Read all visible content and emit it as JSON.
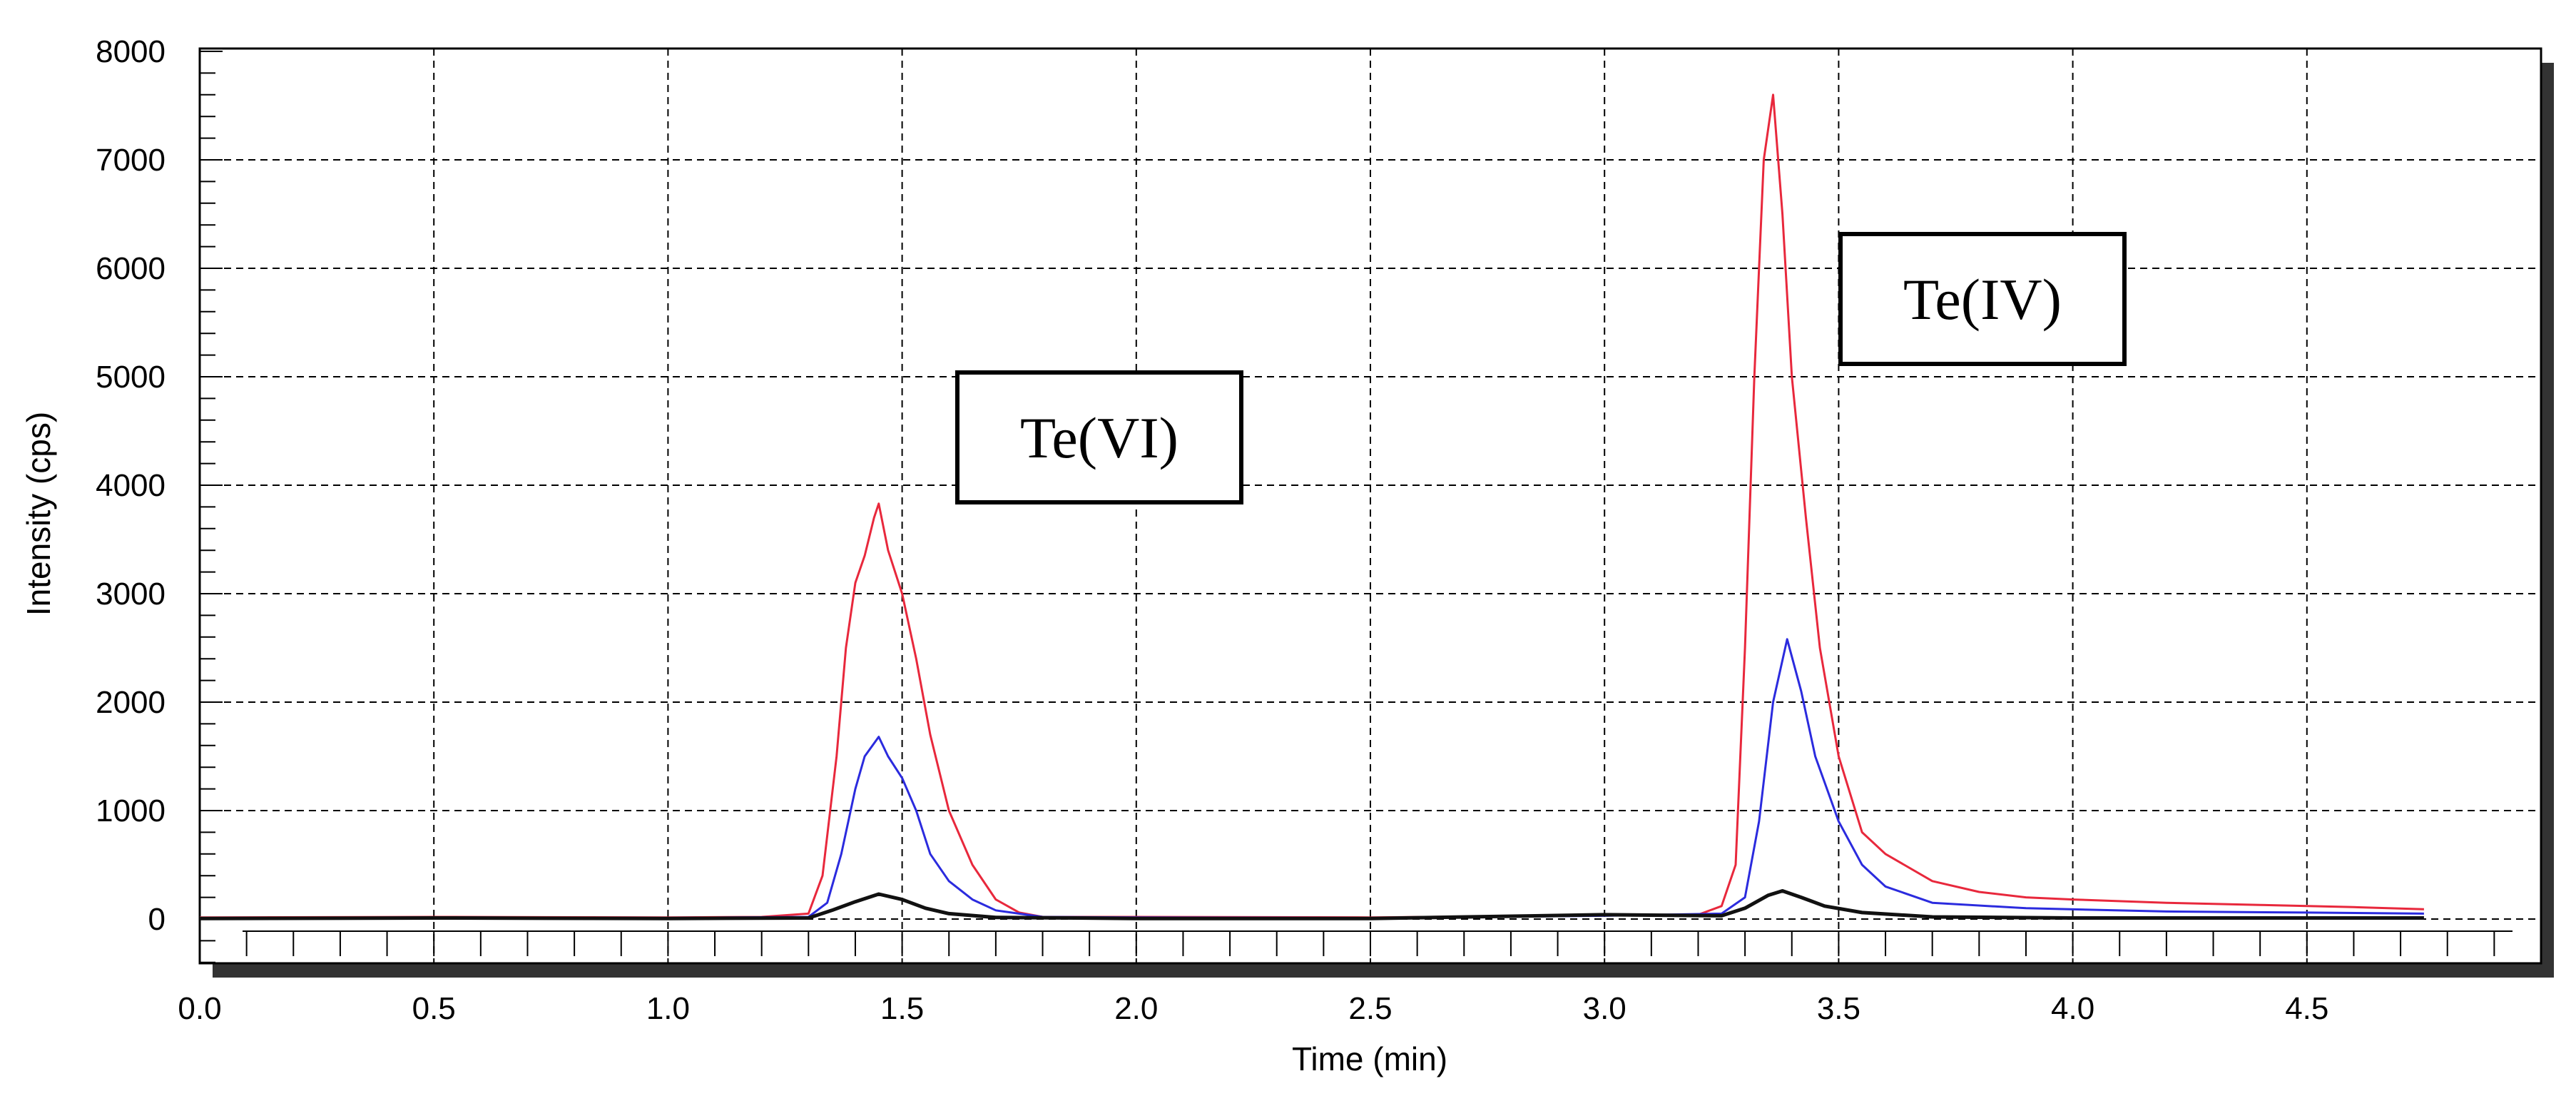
{
  "chart_data": {
    "type": "line",
    "title": "",
    "xlabel": "Time (min)",
    "ylabel": "Intensity (cps)",
    "xlim": [
      0,
      5.0
    ],
    "ylim": [
      -400,
      8000
    ],
    "grid": true,
    "x_ticks": [
      0.0,
      0.5,
      1.0,
      1.5,
      2.0,
      2.5,
      3.0,
      3.5,
      4.0,
      4.5
    ],
    "x_tick_labels": [
      "0.0",
      "0.5",
      "1.0",
      "1.5",
      "2.0",
      "2.5",
      "3.0",
      "3.5",
      "4.0",
      "4.5"
    ],
    "y_ticks": [
      0,
      1000,
      2000,
      3000,
      4000,
      5000,
      6000,
      7000,
      8000
    ],
    "y_tick_labels": [
      "0",
      "1000",
      "2000",
      "3000",
      "4000",
      "5000",
      "6000",
      "7000",
      "8000"
    ],
    "series": [
      {
        "name": "red",
        "color": "#e8283c",
        "points": [
          [
            0,
            15
          ],
          [
            0.5,
            20
          ],
          [
            1.0,
            15
          ],
          [
            1.2,
            20
          ],
          [
            1.3,
            50
          ],
          [
            1.33,
            400
          ],
          [
            1.36,
            1500
          ],
          [
            1.38,
            2500
          ],
          [
            1.4,
            3100
          ],
          [
            1.42,
            3350
          ],
          [
            1.44,
            3700
          ],
          [
            1.45,
            3830
          ],
          [
            1.47,
            3400
          ],
          [
            1.5,
            3000
          ],
          [
            1.53,
            2400
          ],
          [
            1.56,
            1700
          ],
          [
            1.6,
            1000
          ],
          [
            1.65,
            500
          ],
          [
            1.7,
            180
          ],
          [
            1.75,
            60
          ],
          [
            1.8,
            20
          ],
          [
            2.0,
            20
          ],
          [
            2.5,
            15
          ],
          [
            2.9,
            30
          ],
          [
            3.2,
            40
          ],
          [
            3.25,
            120
          ],
          [
            3.28,
            500
          ],
          [
            3.3,
            2500
          ],
          [
            3.32,
            5000
          ],
          [
            3.34,
            7000
          ],
          [
            3.36,
            7600
          ],
          [
            3.38,
            6500
          ],
          [
            3.4,
            5000
          ],
          [
            3.43,
            3700
          ],
          [
            3.46,
            2500
          ],
          [
            3.5,
            1500
          ],
          [
            3.55,
            800
          ],
          [
            3.6,
            600
          ],
          [
            3.7,
            350
          ],
          [
            3.8,
            250
          ],
          [
            3.9,
            200
          ],
          [
            4.0,
            180
          ],
          [
            4.2,
            150
          ],
          [
            4.4,
            130
          ],
          [
            4.6,
            110
          ],
          [
            4.75,
            90
          ]
        ]
      },
      {
        "name": "blue",
        "color": "#2b2bde",
        "points": [
          [
            0,
            10
          ],
          [
            0.5,
            15
          ],
          [
            1.0,
            10
          ],
          [
            1.3,
            20
          ],
          [
            1.34,
            150
          ],
          [
            1.37,
            600
          ],
          [
            1.4,
            1200
          ],
          [
            1.42,
            1500
          ],
          [
            1.45,
            1680
          ],
          [
            1.47,
            1500
          ],
          [
            1.5,
            1300
          ],
          [
            1.53,
            1000
          ],
          [
            1.56,
            600
          ],
          [
            1.6,
            350
          ],
          [
            1.65,
            180
          ],
          [
            1.7,
            80
          ],
          [
            1.8,
            20
          ],
          [
            2.0,
            15
          ],
          [
            2.5,
            10
          ],
          [
            3.0,
            30
          ],
          [
            3.25,
            50
          ],
          [
            3.3,
            200
          ],
          [
            3.33,
            900
          ],
          [
            3.36,
            2000
          ],
          [
            3.39,
            2580
          ],
          [
            3.42,
            2100
          ],
          [
            3.45,
            1500
          ],
          [
            3.5,
            900
          ],
          [
            3.55,
            500
          ],
          [
            3.6,
            300
          ],
          [
            3.7,
            150
          ],
          [
            3.9,
            100
          ],
          [
            4.2,
            70
          ],
          [
            4.5,
            60
          ],
          [
            4.75,
            50
          ]
        ]
      },
      {
        "name": "black",
        "color": "#111111",
        "points": [
          [
            0,
            5
          ],
          [
            0.5,
            10
          ],
          [
            1.0,
            5
          ],
          [
            1.3,
            10
          ],
          [
            1.35,
            80
          ],
          [
            1.4,
            160
          ],
          [
            1.45,
            230
          ],
          [
            1.5,
            180
          ],
          [
            1.55,
            100
          ],
          [
            1.6,
            50
          ],
          [
            1.7,
            15
          ],
          [
            2.0,
            5
          ],
          [
            2.5,
            5
          ],
          [
            3.0,
            40
          ],
          [
            3.25,
            30
          ],
          [
            3.3,
            100
          ],
          [
            3.35,
            220
          ],
          [
            3.38,
            260
          ],
          [
            3.42,
            200
          ],
          [
            3.47,
            120
          ],
          [
            3.55,
            60
          ],
          [
            3.7,
            20
          ],
          [
            4.0,
            10
          ],
          [
            4.5,
            10
          ],
          [
            4.75,
            10
          ]
        ]
      }
    ],
    "annotations": [
      {
        "label": "Te(VI)",
        "x": 1.55
      },
      {
        "label": "Te(IV)",
        "x": 3.4
      }
    ]
  }
}
